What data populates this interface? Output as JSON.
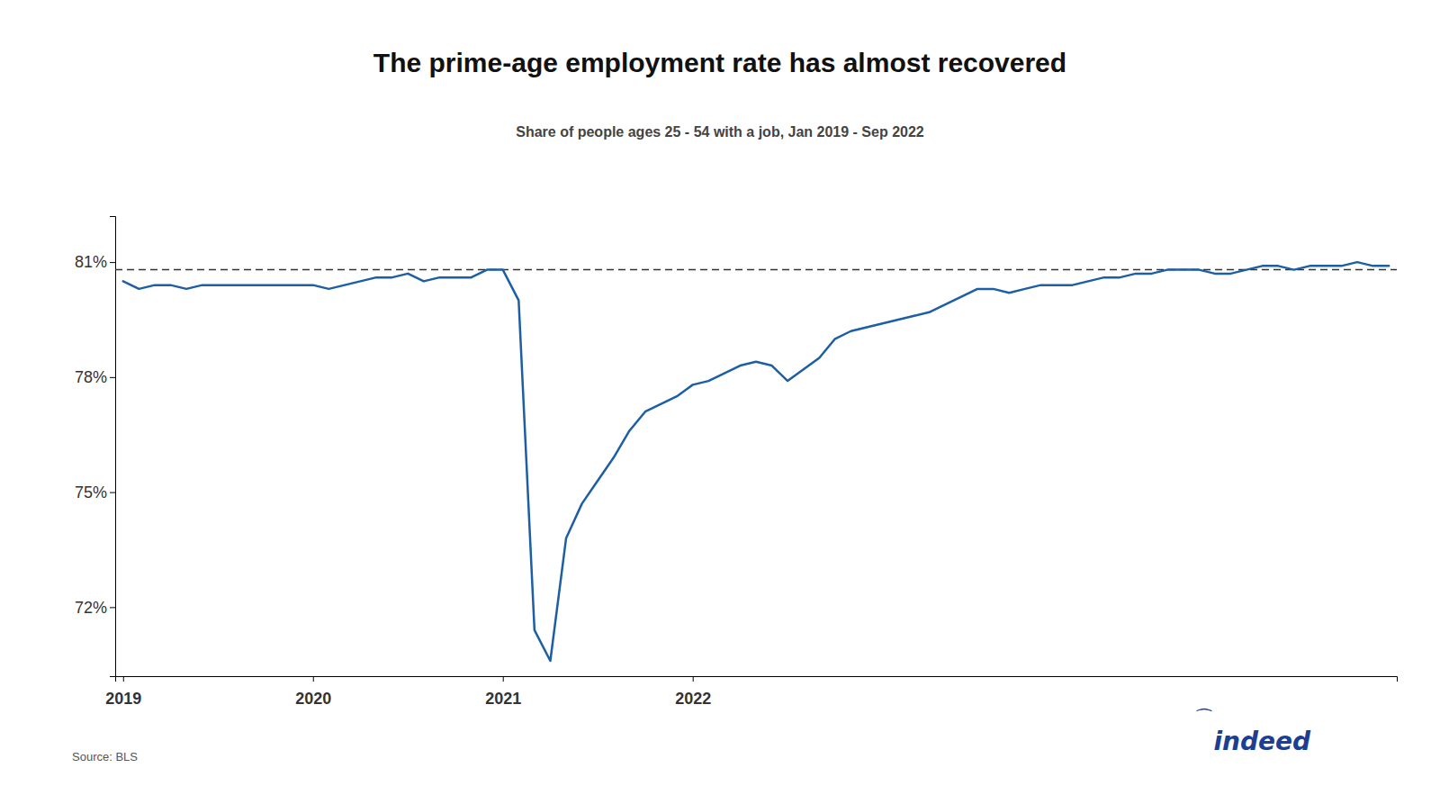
{
  "chart_data": {
    "type": "line",
    "title": "The prime-age employment rate has almost recovered",
    "subtitle": "Share of people ages 25 - 54 with a job, Jan 2019 - Sep 2022",
    "source": "Source: BLS",
    "categories": [
      "2019",
      null,
      null,
      null,
      null,
      null,
      null,
      null,
      null,
      null,
      null,
      null,
      "2020",
      null,
      null,
      null,
      null,
      null,
      null,
      null,
      null,
      null,
      null,
      null,
      "2021",
      null,
      null,
      null,
      null,
      null,
      null,
      null,
      null,
      null,
      null,
      null,
      "2022",
      null,
      null,
      null,
      null,
      null,
      null,
      null,
      null,
      null,
      null,
      null,
      null,
      null,
      null,
      null,
      null,
      null,
      null,
      null,
      null,
      null,
      null,
      null,
      null,
      null,
      null,
      null,
      null,
      null,
      null,
      null,
      null,
      null,
      null,
      null,
      null,
      null,
      null,
      null,
      null,
      null,
      null,
      null,
      null
    ],
    "values": [
      80.5,
      80.3,
      80.4,
      80.4,
      80.3,
      80.4,
      80.4,
      80.4,
      80.4,
      80.4,
      80.4,
      80.4,
      80.4,
      80.3,
      80.4,
      80.5,
      80.6,
      80.6,
      80.7,
      80.5,
      80.6,
      80.6,
      80.6,
      80.8,
      80.8,
      80.0,
      71.4,
      70.6,
      73.8,
      74.7,
      75.3,
      75.9,
      76.6,
      77.1,
      77.3,
      77.5,
      77.8,
      77.9,
      78.1,
      78.3,
      78.4,
      78.3,
      77.9,
      78.2,
      78.5,
      79.0,
      79.2,
      79.3,
      79.4,
      79.5,
      79.6,
      79.7,
      79.9,
      80.1,
      80.3,
      80.3,
      80.2,
      80.3,
      80.4,
      80.4,
      80.4,
      80.5,
      80.6,
      80.6,
      80.7,
      80.7,
      80.8,
      80.8,
      80.8,
      80.7,
      80.7,
      80.8,
      80.9,
      80.9,
      80.8,
      80.9,
      80.9,
      80.9,
      81.0,
      80.9,
      80.9
    ],
    "color": "#1c5fa5",
    "ylim": [
      70.2,
      82.2
    ],
    "yticks": [
      {
        "value": 72,
        "label": "72%"
      },
      {
        "value": 75,
        "label": "75%"
      },
      {
        "value": 78,
        "label": "78%"
      },
      {
        "value": 81,
        "label": "81%"
      }
    ],
    "grid": false,
    "reference_line": {
      "value": 80.8,
      "color": "#333333",
      "line_style": "dashed"
    },
    "annotations": [
      {
        "text": "indeed",
        "color": "#1c3f94"
      },
      {
        "text": "⁀",
        "color": "#1c3f94"
      }
    ]
  }
}
